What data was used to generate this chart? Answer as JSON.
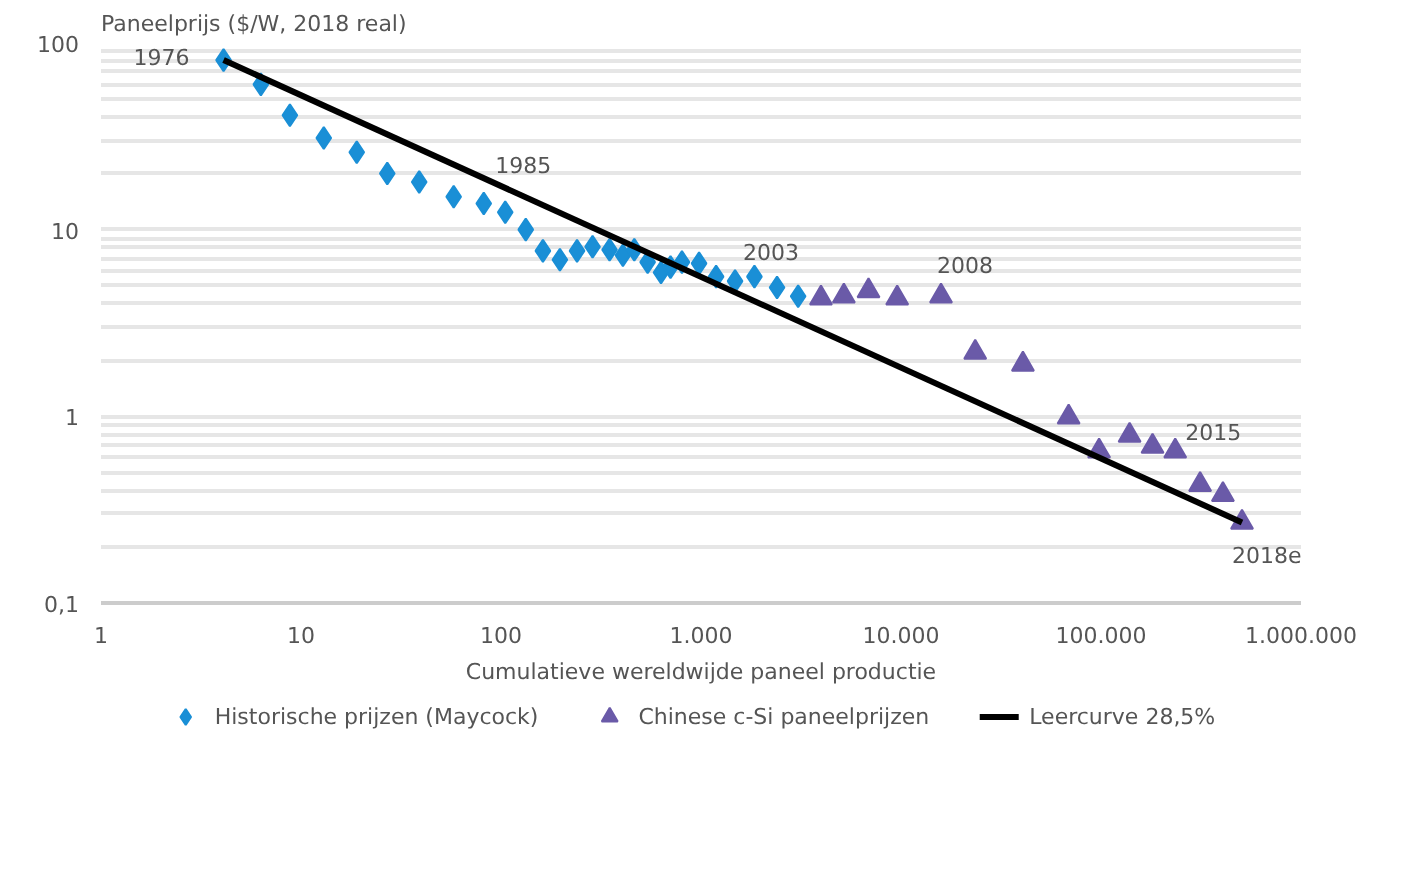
{
  "chart_data": {
    "type": "scatter",
    "ylabel": "Paneelprijs ($/W, 2018 real)",
    "xlabel": "Cumulatieve wereldwijde paneel productie",
    "log": "xy",
    "grid": "y",
    "legend": "bottom",
    "xlim": [
      1,
      1000000
    ],
    "ylim": [
      0.1,
      100
    ],
    "xticks": [
      1,
      10,
      100,
      {
        "value": 1000,
        "label": "1.000"
      },
      {
        "value": 10000,
        "label": "10.000"
      },
      {
        "value": 100000,
        "label": "100.000"
      },
      {
        "value": 1000000,
        "label": "1.000.000"
      }
    ],
    "yticks": [
      {
        "value": 0.1,
        "label": "0,1"
      },
      1,
      10,
      100
    ],
    "series": [
      {
        "name": "Historische prijzen (Maycock)",
        "marker": "diamond",
        "color": "#1a8fd6",
        "x": [
          4.1,
          6.3,
          8.8,
          13,
          19,
          27,
          39,
          58,
          82,
          105,
          133,
          162,
          197,
          240,
          287,
          349,
          407,
          464,
          541,
          631,
          704,
          803,
          978,
          1190,
          1480,
          1850,
          2400,
          3060
        ],
        "values": [
          81,
          60,
          41,
          31,
          26,
          20,
          18,
          15,
          13.8,
          12.4,
          10,
          7.7,
          6.9,
          7.7,
          8.1,
          7.8,
          7.3,
          7.8,
          6.7,
          5.9,
          6.3,
          6.7,
          6.6,
          5.6,
          5.3,
          5.6,
          4.9,
          4.4
        ]
      },
      {
        "name": "Chinese c-Si paneelprijzen",
        "marker": "triangle",
        "color": "#6a5aa8",
        "x": [
          3980,
          5180,
          6880,
          9570,
          15850,
          23500,
          40700,
          68900,
          97800,
          139000,
          181000,
          235000,
          313000,
          407000,
          507000
        ],
        "values": [
          4.3,
          4.4,
          4.7,
          4.3,
          4.4,
          2.2,
          1.9,
          0.99,
          0.65,
          0.79,
          0.69,
          0.65,
          0.43,
          0.38,
          0.27
        ]
      },
      {
        "name": "Leercurve 28,5%",
        "type": "line",
        "color": "#000000",
        "x": [
          4.1,
          507000
        ],
        "values": [
          81,
          0.27
        ]
      }
    ],
    "annotations": [
      {
        "text": "1976",
        "x": 4.1,
        "y": 81
      },
      {
        "text": "1985",
        "x": 105,
        "y": 12.4
      },
      {
        "text": "2003",
        "x": 2400,
        "y": 4.9
      },
      {
        "text": "2008",
        "x": 15850,
        "y": 4.4
      },
      {
        "text": "2015",
        "x": 235000,
        "y": 0.65
      },
      {
        "text": "2018e",
        "x": 507000,
        "y": 0.27
      }
    ]
  }
}
